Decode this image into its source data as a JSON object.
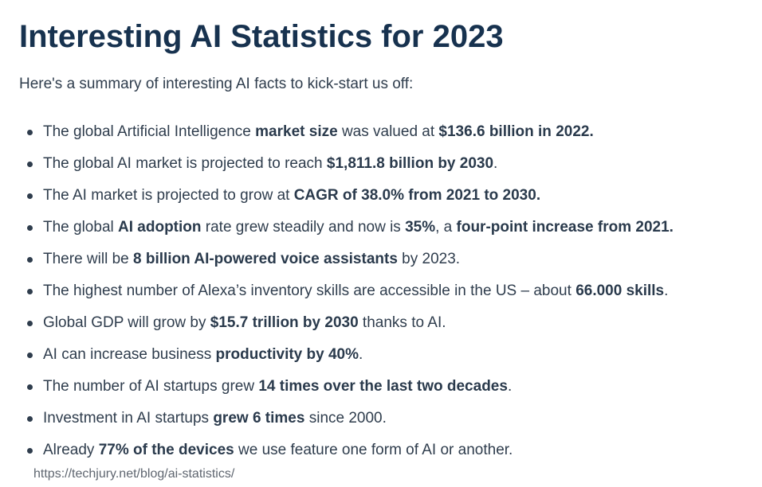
{
  "title": "Interesting AI Statistics for 2023",
  "intro": "Here's a summary of interesting AI facts to kick-start us off:",
  "facts": [
    {
      "t1": "The global Artificial Intelligence ",
      "b1": "market size",
      "t2": " was valued at ",
      "b2": "$136.6 billion in 2022."
    },
    {
      "t1": "The global AI market is projected to reach  ",
      "b1": "$1,811.8 billion by 2030",
      "t2": "."
    },
    {
      "t1": "The AI market is projected to grow at ",
      "b1": "CAGR of 38.0% from 2021 to 2030."
    },
    {
      "t1": "The global ",
      "b1": "AI adoption",
      "t2": " rate grew steadily and now is ",
      "b2": "35%",
      "t3": ", a ",
      "b3": "four-point increase from 2021."
    },
    {
      "t1": "There will be ",
      "b1": "8 billion AI-powered voice assistants",
      "t2": " by 2023."
    },
    {
      "t1": "The highest number of Alexa’s inventory skills are accessible in the US – about ",
      "b1": "66.000 skills",
      "t2": "."
    },
    {
      "t1": "Global GDP will grow by ",
      "b1": "$15.7 trillion by 2030",
      "t2": " thanks to AI."
    },
    {
      "t1": "AI can increase business ",
      "b1": "productivity by 40%",
      "t2": "."
    },
    {
      "t1": "The number of AI startups grew ",
      "b1": "14 times over the last two decades",
      "t2": "."
    },
    {
      "t1": "Investment in AI startups ",
      "b1": "grew 6 times",
      "t2": " since 2000."
    },
    {
      "t1": "Already ",
      "b1": "77% of the devices",
      "t2": " we use feature one form of AI or another."
    }
  ],
  "source": "https://techjury.net/blog/ai-statistics/"
}
